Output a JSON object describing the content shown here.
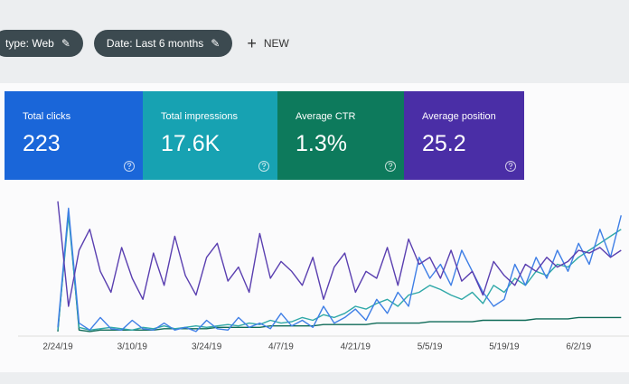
{
  "toolbar": {
    "chips": [
      "type: Web",
      "Date: Last 6 months"
    ],
    "new_button": "NEW"
  },
  "metrics": [
    {
      "label": "Total clicks",
      "value": "223",
      "color": "#1a66d9"
    },
    {
      "label": "Total impressions",
      "value": "17.6K",
      "color": "#17a2b2"
    },
    {
      "label": "Average CTR",
      "value": "1.3%",
      "color": "#0d7a5c"
    },
    {
      "label": "Average position",
      "value": "25.2",
      "color": "#4a2ea6"
    }
  ],
  "chart_data": {
    "type": "line",
    "categories": [
      "2/24/19",
      null,
      null,
      null,
      null,
      null,
      null,
      "3/10/19",
      null,
      null,
      null,
      null,
      null,
      null,
      "3/24/19",
      null,
      null,
      null,
      null,
      null,
      null,
      "4/7/19",
      null,
      null,
      null,
      null,
      null,
      null,
      "4/21/19",
      null,
      null,
      null,
      null,
      null,
      null,
      "5/5/19",
      null,
      null,
      null,
      null,
      null,
      null,
      "5/19/19",
      null,
      null,
      null,
      null,
      null,
      null,
      "6/2/19",
      null,
      null,
      null,
      null
    ],
    "ylim": [
      0,
      100
    ],
    "series": [
      {
        "color": "#5a3fb0",
        "values": [
          95,
          20,
          60,
          75,
          45,
          30,
          62,
          40,
          25,
          58,
          35,
          70,
          42,
          28,
          55,
          65,
          38,
          48,
          30,
          72,
          40,
          52,
          45,
          35,
          55,
          25,
          48,
          58,
          30,
          45,
          40,
          62,
          35,
          68,
          50,
          55,
          40,
          60,
          38,
          45,
          28,
          52,
          42,
          35,
          50,
          45,
          55,
          48,
          52,
          60,
          58,
          62,
          55,
          60
        ]
      },
      {
        "color": "#3f7fe6",
        "values": [
          5,
          90,
          8,
          3,
          12,
          4,
          3,
          10,
          4,
          3,
          8,
          3,
          5,
          2,
          10,
          4,
          3,
          12,
          5,
          8,
          4,
          15,
          6,
          10,
          5,
          20,
          8,
          12,
          18,
          10,
          25,
          15,
          30,
          20,
          55,
          40,
          50,
          35,
          60,
          45,
          30,
          20,
          25,
          50,
          35,
          55,
          40,
          60,
          45,
          65,
          50,
          75,
          55,
          85
        ]
      },
      {
        "color": "#2fa8a8",
        "values": [
          3,
          85,
          5,
          3,
          4,
          5,
          4,
          3,
          5,
          4,
          6,
          4,
          5,
          6,
          5,
          6,
          7,
          6,
          8,
          7,
          10,
          8,
          9,
          12,
          10,
          14,
          12,
          15,
          20,
          18,
          22,
          25,
          20,
          28,
          30,
          35,
          32,
          28,
          25,
          30,
          22,
          35,
          30,
          40,
          35,
          45,
          42,
          50,
          48,
          55,
          60,
          65,
          70,
          75
        ]
      },
      {
        "color": "#0f6b58",
        "values": [
          2,
          88,
          3,
          2,
          3,
          3,
          3,
          3,
          3,
          3,
          4,
          4,
          4,
          4,
          4,
          5,
          5,
          5,
          5,
          5,
          6,
          6,
          6,
          6,
          6,
          7,
          7,
          7,
          7,
          7,
          8,
          8,
          8,
          8,
          8,
          9,
          9,
          9,
          9,
          9,
          10,
          10,
          10,
          10,
          10,
          11,
          11,
          11,
          11,
          12,
          12,
          12,
          12,
          12
        ]
      }
    ]
  }
}
